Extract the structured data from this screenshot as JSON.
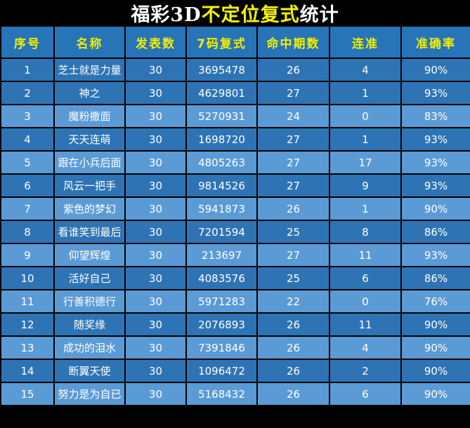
{
  "title": {
    "part1": "福彩3D",
    "part2": "不定位复式",
    "part3": "统计"
  },
  "colors": {
    "background": "#000000",
    "header_blue": "#2874B8",
    "row_dark_blue": "#2E74B5",
    "row_light_blue": "#5B9BD5",
    "header_text": "#F0EE00",
    "cell_text": "#FFFFFF",
    "title_highlight": "#F5F500"
  },
  "table": {
    "headers": [
      "序号",
      "名称",
      "发表数",
      "7码复式",
      "命中期数",
      "连准",
      "准确率"
    ],
    "rows": [
      {
        "no": "1",
        "name": "芝士就是力量",
        "published": "30",
        "compound": "3695478",
        "hits": "26",
        "streak": "4",
        "accuracy": "90%",
        "shade": "dark"
      },
      {
        "no": "2",
        "name": "神之",
        "published": "30",
        "compound": "4629801",
        "hits": "27",
        "streak": "1",
        "accuracy": "93%",
        "shade": "dark"
      },
      {
        "no": "3",
        "name": "魔粉撒面",
        "published": "30",
        "compound": "5270931",
        "hits": "24",
        "streak": "0",
        "accuracy": "83%",
        "shade": "light"
      },
      {
        "no": "4",
        "name": "天天连萌",
        "published": "30",
        "compound": "1698720",
        "hits": "27",
        "streak": "1",
        "accuracy": "93%",
        "shade": "dark"
      },
      {
        "no": "5",
        "name": "跟在小兵后面",
        "published": "30",
        "compound": "4805263",
        "hits": "27",
        "streak": "17",
        "accuracy": "93%",
        "shade": "light"
      },
      {
        "no": "6",
        "name": "风云一把手",
        "published": "30",
        "compound": "9814526",
        "hits": "27",
        "streak": "9",
        "accuracy": "93%",
        "shade": "dark"
      },
      {
        "no": "7",
        "name": "紫色的梦幻",
        "published": "30",
        "compound": "5941873",
        "hits": "26",
        "streak": "1",
        "accuracy": "90%",
        "shade": "light"
      },
      {
        "no": "8",
        "name": "看谁笑到最后",
        "published": "30",
        "compound": "7201594",
        "hits": "25",
        "streak": "8",
        "accuracy": "86%",
        "shade": "dark"
      },
      {
        "no": "9",
        "name": "仰望辉煌",
        "published": "30",
        "compound": "213697",
        "hits": "27",
        "streak": "11",
        "accuracy": "93%",
        "shade": "light"
      },
      {
        "no": "10",
        "name": "活好自己",
        "published": "30",
        "compound": "4083576",
        "hits": "25",
        "streak": "6",
        "accuracy": "86%",
        "shade": "dark"
      },
      {
        "no": "11",
        "name": "行善积德行",
        "published": "30",
        "compound": "5971283",
        "hits": "22",
        "streak": "0",
        "accuracy": "76%",
        "shade": "light"
      },
      {
        "no": "12",
        "name": "随奖缘",
        "published": "30",
        "compound": "2076893",
        "hits": "26",
        "streak": "11",
        "accuracy": "90%",
        "shade": "dark"
      },
      {
        "no": "13",
        "name": "成功的泪水",
        "published": "30",
        "compound": "7391846",
        "hits": "26",
        "streak": "4",
        "accuracy": "90%",
        "shade": "light"
      },
      {
        "no": "14",
        "name": "断翼天使",
        "published": "30",
        "compound": "1096472",
        "hits": "26",
        "streak": "2",
        "accuracy": "90%",
        "shade": "dark"
      },
      {
        "no": "15",
        "name": "努力是为自已",
        "published": "30",
        "compound": "5168432",
        "hits": "26",
        "streak": "6",
        "accuracy": "90%",
        "shade": "light"
      }
    ]
  }
}
